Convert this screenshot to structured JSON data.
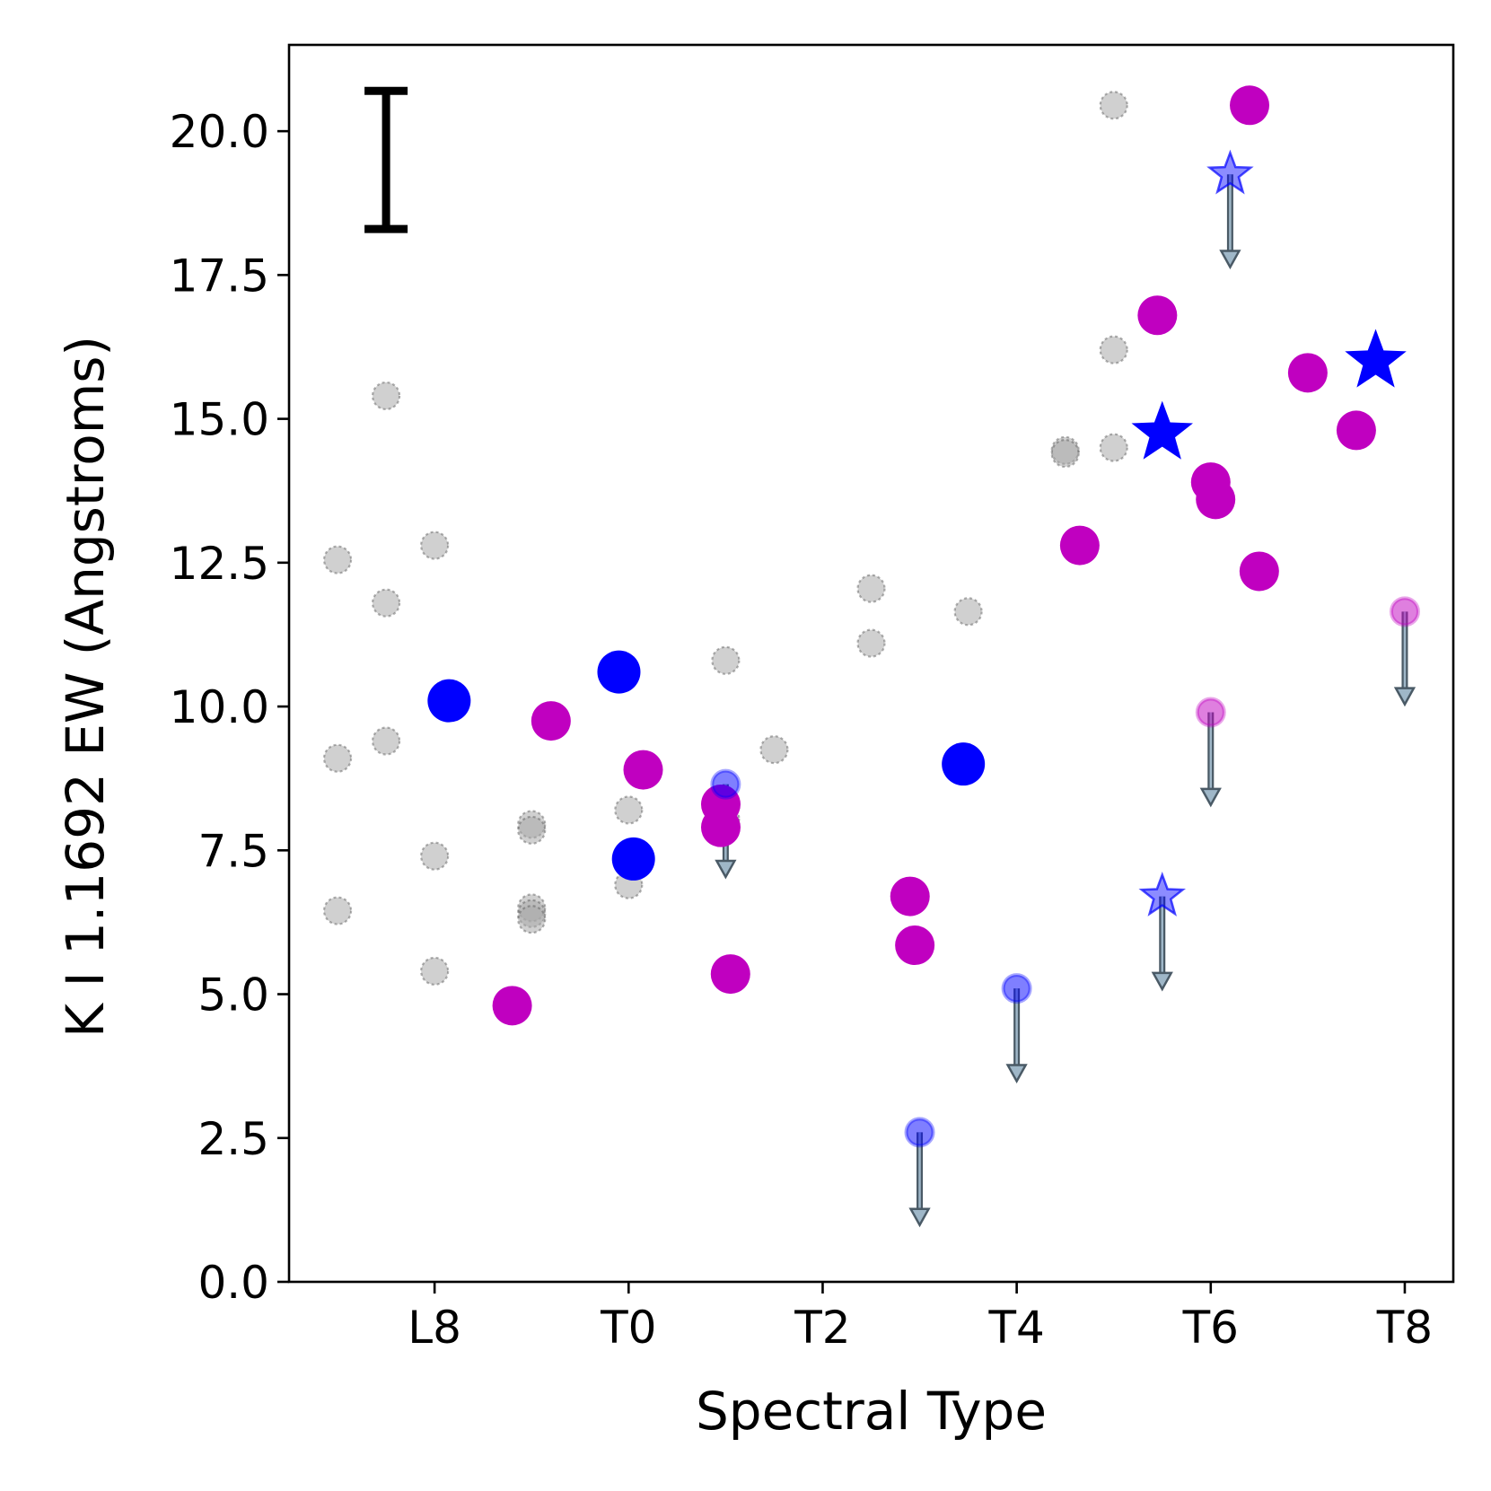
{
  "chart_data": {
    "type": "scatter",
    "title": "",
    "xlabel": "Spectral Type",
    "ylabel": "K I 1.1692 EW (Angstroms)",
    "xlim": [
      -3.5,
      8.5
    ],
    "ylim": [
      0,
      21.5
    ],
    "x_ticks": [
      {
        "value": -2,
        "label": "L8"
      },
      {
        "value": 0,
        "label": "T0"
      },
      {
        "value": 2,
        "label": "T2"
      },
      {
        "value": 4,
        "label": "T4"
      },
      {
        "value": 6,
        "label": "T6"
      },
      {
        "value": 8,
        "label": "T8"
      }
    ],
    "y_ticks": [
      {
        "value": 0,
        "label": "0.0"
      },
      {
        "value": 2.5,
        "label": "2.5"
      },
      {
        "value": 5,
        "label": "5.0"
      },
      {
        "value": 7.5,
        "label": "7.5"
      },
      {
        "value": 10,
        "label": "10.0"
      },
      {
        "value": 12.5,
        "label": "12.5"
      },
      {
        "value": 15,
        "label": "15.0"
      },
      {
        "value": 17.5,
        "label": "17.5"
      },
      {
        "value": 20,
        "label": "20.0"
      }
    ],
    "typical_error_bar": {
      "x": -2.5,
      "y_low": 18.3,
      "y_high": 20.7
    },
    "colors": {
      "comparison": "#a9a9a9",
      "magenta": "#c000c0",
      "blue": "#0000ff",
      "arrow": "#4a5a66"
    },
    "series": [
      {
        "name": "comparison",
        "marker": "circle",
        "points": [
          {
            "x": -3,
            "y": 12.55
          },
          {
            "x": -3,
            "y": 9.1
          },
          {
            "x": -3,
            "y": 6.45
          },
          {
            "x": -2.5,
            "y": 15.4
          },
          {
            "x": -2.5,
            "y": 11.8
          },
          {
            "x": -2.5,
            "y": 9.4
          },
          {
            "x": -2,
            "y": 12.8
          },
          {
            "x": -2,
            "y": 7.4
          },
          {
            "x": -2,
            "y": 5.4
          },
          {
            "x": -1,
            "y": 7.95
          },
          {
            "x": -1,
            "y": 7.85
          },
          {
            "x": -1,
            "y": 6.5
          },
          {
            "x": -1,
            "y": 6.4
          },
          {
            "x": -1,
            "y": 6.3
          },
          {
            "x": 0,
            "y": 8.2
          },
          {
            "x": 0,
            "y": 6.9
          },
          {
            "x": 1,
            "y": 10.8
          },
          {
            "x": 1,
            "y": 8.05
          },
          {
            "x": 1.5,
            "y": 9.25
          },
          {
            "x": 2.5,
            "y": 12.05
          },
          {
            "x": 2.5,
            "y": 11.1
          },
          {
            "x": 3.5,
            "y": 11.65
          },
          {
            "x": 4.5,
            "y": 14.45
          },
          {
            "x": 4.5,
            "y": 14.4
          },
          {
            "x": 5,
            "y": 20.45
          },
          {
            "x": 5,
            "y": 16.2
          },
          {
            "x": 5,
            "y": 14.5
          }
        ]
      },
      {
        "name": "magenta",
        "marker": "circle",
        "points": [
          {
            "x": -1.2,
            "y": 4.8
          },
          {
            "x": -0.8,
            "y": 9.75
          },
          {
            "x": 0.15,
            "y": 8.9
          },
          {
            "x": 0.95,
            "y": 8.3
          },
          {
            "x": 0.95,
            "y": 7.9
          },
          {
            "x": 1.05,
            "y": 5.35
          },
          {
            "x": 2.9,
            "y": 6.7
          },
          {
            "x": 2.95,
            "y": 5.85
          },
          {
            "x": 4.65,
            "y": 12.8
          },
          {
            "x": 5.45,
            "y": 16.8
          },
          {
            "x": 6,
            "y": 13.9
          },
          {
            "x": 6.05,
            "y": 13.6
          },
          {
            "x": 6.4,
            "y": 20.45
          },
          {
            "x": 6.5,
            "y": 12.35
          },
          {
            "x": 7,
            "y": 15.8
          },
          {
            "x": 7.5,
            "y": 14.8
          }
        ]
      },
      {
        "name": "blue",
        "marker": "circle",
        "points": [
          {
            "x": -1.85,
            "y": 10.1
          },
          {
            "x": -0.1,
            "y": 10.6
          },
          {
            "x": 0.05,
            "y": 7.35
          },
          {
            "x": 3.45,
            "y": 9
          }
        ]
      },
      {
        "name": "blue-star",
        "marker": "star",
        "points": [
          {
            "x": 5.5,
            "y": 14.75
          },
          {
            "x": 7.7,
            "y": 16
          }
        ]
      },
      {
        "name": "upper-limits",
        "marker": "arrow-down",
        "points": [
          {
            "x": 1,
            "y": 8.65,
            "color": "blue",
            "shape": "circle"
          },
          {
            "x": 3,
            "y": 2.6,
            "color": "blue",
            "shape": "circle"
          },
          {
            "x": 4,
            "y": 5.1,
            "color": "blue",
            "shape": "circle"
          },
          {
            "x": 5.5,
            "y": 6.7,
            "color": "blue",
            "shape": "star"
          },
          {
            "x": 6.2,
            "y": 19.25,
            "color": "blue",
            "shape": "star"
          },
          {
            "x": 6,
            "y": 9.9,
            "color": "magenta",
            "shape": "circle"
          },
          {
            "x": 8,
            "y": 11.65,
            "color": "magenta",
            "shape": "circle"
          }
        ]
      }
    ]
  }
}
